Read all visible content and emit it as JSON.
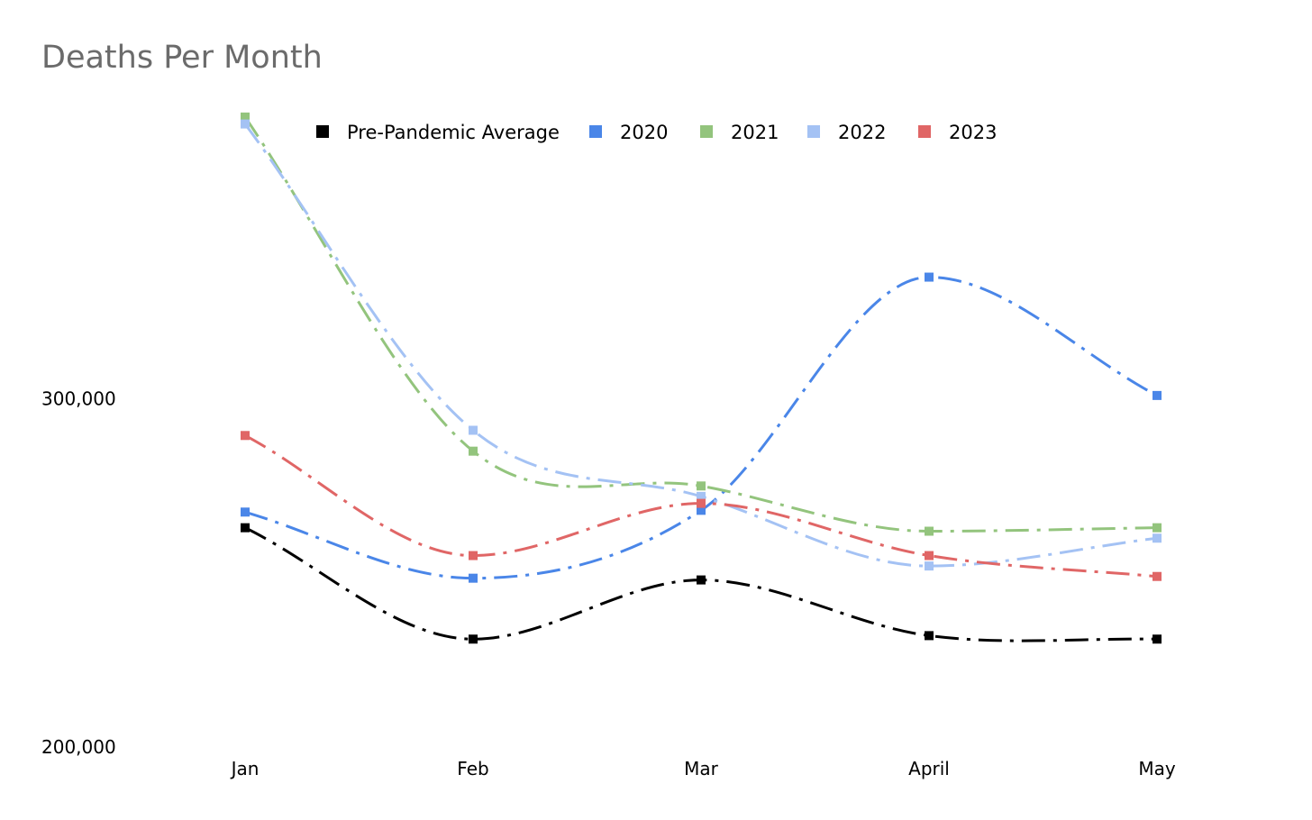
{
  "chart_data": {
    "type": "line",
    "title": "Deaths Per Month",
    "xlabel": "",
    "ylabel": "",
    "categories": [
      "Jan",
      "Feb",
      "Mar",
      "April",
      "May"
    ],
    "ylim": [
      200000,
      382000
    ],
    "yticks": [
      {
        "value": 200000,
        "label": "200,000"
      },
      {
        "value": 300000,
        "label": "300,000"
      }
    ],
    "grid": false,
    "legend_position": "top",
    "line_style": "dash-dot",
    "series": [
      {
        "name": "Pre-Pandemic Average",
        "color": "#000000",
        "values": [
          263000,
          231000,
          248000,
          232000,
          231000
        ]
      },
      {
        "name": "2020",
        "color": "#4a86e8",
        "values": [
          267500,
          248500,
          268000,
          335000,
          301000
        ]
      },
      {
        "name": "2021",
        "color": "#93c47d",
        "values": [
          381000,
          285000,
          275000,
          262000,
          263000
        ]
      },
      {
        "name": "2022",
        "color": "#a4c2f4",
        "values": [
          379000,
          291000,
          272000,
          252000,
          260000
        ]
      },
      {
        "name": "2023",
        "color": "#e06666",
        "values": [
          289500,
          255000,
          270000,
          255000,
          249000
        ]
      }
    ]
  }
}
